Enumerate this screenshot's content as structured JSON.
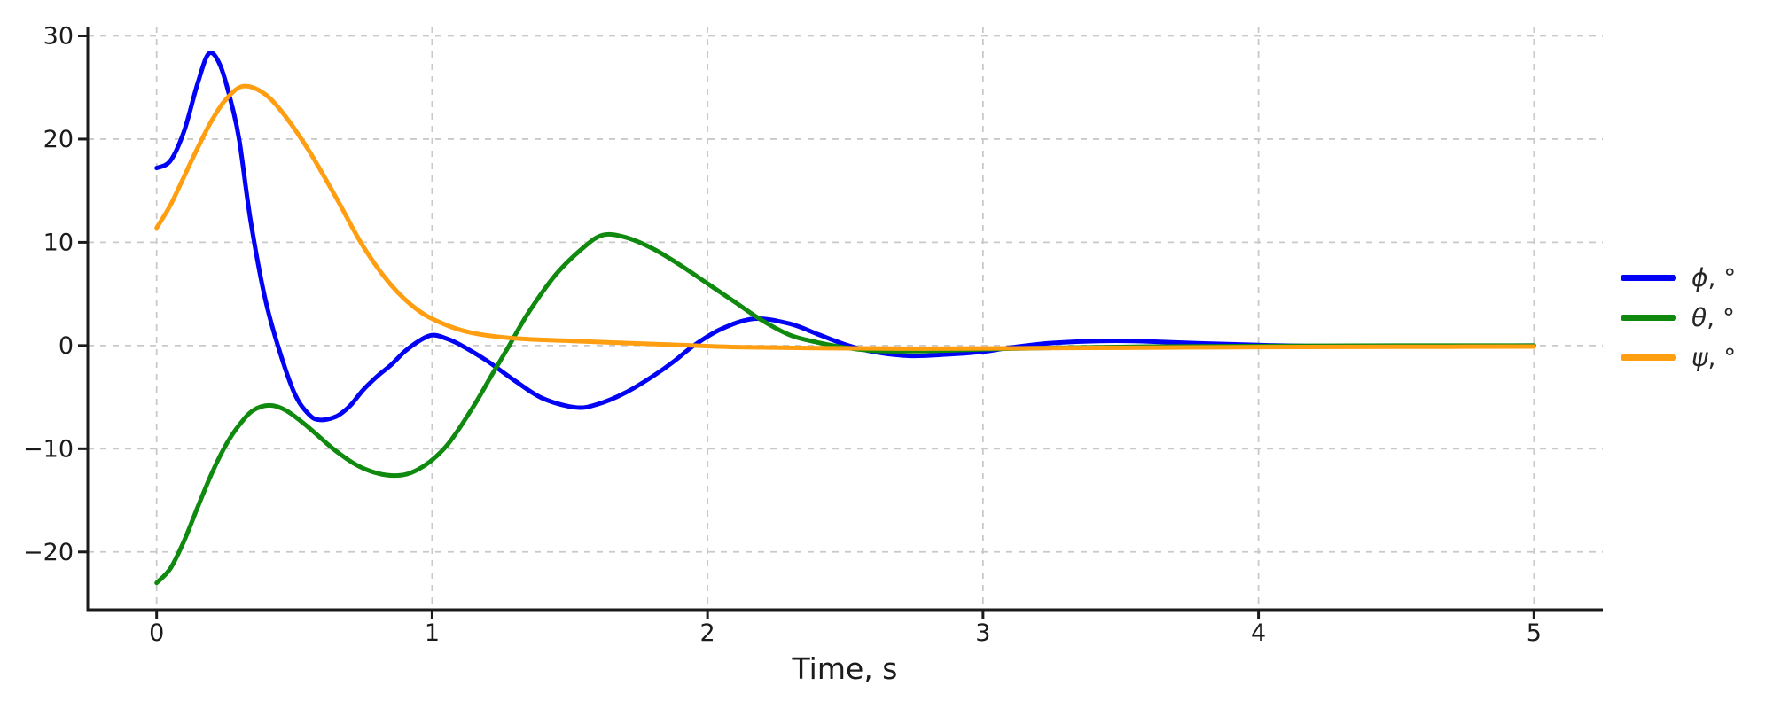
{
  "figure": {
    "background": "#ffffff",
    "axis_color": "#1b1b1b",
    "grid_color": "#c9c9c9",
    "text_color": "#1b1b1b"
  },
  "legend": {
    "position": "outside-center-right",
    "items": [
      {
        "series": "phi",
        "symbol": "ϕ",
        "suffix": ", °",
        "color": "#0202f5"
      },
      {
        "series": "theta",
        "symbol": "θ",
        "suffix": ", °",
        "color": "#0f8a0f"
      },
      {
        "series": "psi",
        "symbol": "ψ",
        "suffix": ", °",
        "color": "#ff9e10"
      }
    ]
  },
  "chart_data": {
    "type": "line",
    "title": "",
    "xlabel": "Time, s",
    "ylabel": "",
    "xlim": [
      -0.25,
      5.25
    ],
    "ylim": [
      -25.6,
      30.9
    ],
    "xticks": [
      0,
      1,
      2,
      3,
      4,
      5
    ],
    "xtick_labels": [
      "0",
      "1",
      "2",
      "3",
      "4",
      "5"
    ],
    "yticks": [
      -20,
      -10,
      0,
      10,
      20,
      30
    ],
    "ytick_labels": [
      "−20",
      "−10",
      "0",
      "10",
      "20",
      "30"
    ],
    "grid": true,
    "grid_style": "dashed",
    "line_width": 5,
    "legend_position": "center right, outside axes",
    "series": [
      {
        "name": "phi",
        "label": "ϕ, °",
        "color": "#0202f5",
        "points": [
          [
            0,
            17.2
          ],
          [
            0.05,
            17.9
          ],
          [
            0.1,
            20.8
          ],
          [
            0.15,
            25.5
          ],
          [
            0.19,
            28.3
          ],
          [
            0.23,
            27.2
          ],
          [
            0.27,
            23.6
          ],
          [
            0.3,
            19.9
          ],
          [
            0.34,
            12.3
          ],
          [
            0.39,
            5.0
          ],
          [
            0.44,
            0.0
          ],
          [
            0.5,
            -4.6
          ],
          [
            0.55,
            -6.6
          ],
          [
            0.59,
            -7.2
          ],
          [
            0.65,
            -6.9
          ],
          [
            0.7,
            -5.9
          ],
          [
            0.75,
            -4.3
          ],
          [
            0.8,
            -3.0
          ],
          [
            0.85,
            -1.9
          ],
          [
            0.9,
            -0.6
          ],
          [
            0.95,
            0.4
          ],
          [
            1.0,
            1.0
          ],
          [
            1.05,
            0.7
          ],
          [
            1.1,
            0.1
          ],
          [
            1.2,
            -1.5
          ],
          [
            1.3,
            -3.4
          ],
          [
            1.4,
            -5.1
          ],
          [
            1.52,
            -6.0
          ],
          [
            1.6,
            -5.7
          ],
          [
            1.7,
            -4.6
          ],
          [
            1.8,
            -3.0
          ],
          [
            1.88,
            -1.5
          ],
          [
            1.95,
            0.0
          ],
          [
            2.05,
            1.6
          ],
          [
            2.17,
            2.6
          ],
          [
            2.3,
            2.1
          ],
          [
            2.4,
            1.1
          ],
          [
            2.5,
            0.1
          ],
          [
            2.6,
            -0.6
          ],
          [
            2.73,
            -1.0
          ],
          [
            2.85,
            -0.9
          ],
          [
            3.0,
            -0.6
          ],
          [
            3.1,
            -0.2
          ],
          [
            3.25,
            0.25
          ],
          [
            3.45,
            0.45
          ],
          [
            3.6,
            0.4
          ],
          [
            3.8,
            0.2
          ],
          [
            4.0,
            0.05
          ],
          [
            4.2,
            -0.05
          ],
          [
            4.5,
            -0.08
          ],
          [
            4.75,
            -0.03
          ],
          [
            5.0,
            0.0
          ]
        ]
      },
      {
        "name": "theta",
        "label": "θ, °",
        "color": "#0f8a0f",
        "points": [
          [
            0,
            -23.0
          ],
          [
            0.05,
            -21.6
          ],
          [
            0.1,
            -18.9
          ],
          [
            0.15,
            -15.6
          ],
          [
            0.2,
            -12.4
          ],
          [
            0.25,
            -9.7
          ],
          [
            0.3,
            -7.7
          ],
          [
            0.35,
            -6.3
          ],
          [
            0.41,
            -5.8
          ],
          [
            0.47,
            -6.3
          ],
          [
            0.55,
            -7.9
          ],
          [
            0.65,
            -10.2
          ],
          [
            0.75,
            -11.9
          ],
          [
            0.86,
            -12.6
          ],
          [
            0.95,
            -12.0
          ],
          [
            1.05,
            -9.8
          ],
          [
            1.15,
            -5.9
          ],
          [
            1.22,
            -2.7
          ],
          [
            1.28,
            0.0
          ],
          [
            1.35,
            3.2
          ],
          [
            1.45,
            6.9
          ],
          [
            1.55,
            9.5
          ],
          [
            1.62,
            10.7
          ],
          [
            1.7,
            10.5
          ],
          [
            1.8,
            9.4
          ],
          [
            1.9,
            7.8
          ],
          [
            2.0,
            6.0
          ],
          [
            2.1,
            4.2
          ],
          [
            2.2,
            2.4
          ],
          [
            2.3,
            1.0
          ],
          [
            2.4,
            0.3
          ],
          [
            2.5,
            -0.2
          ],
          [
            2.6,
            -0.5
          ],
          [
            2.75,
            -0.55
          ],
          [
            2.9,
            -0.45
          ],
          [
            3.1,
            -0.3
          ],
          [
            3.3,
            -0.2
          ],
          [
            3.6,
            -0.1
          ],
          [
            4.0,
            -0.05
          ],
          [
            4.5,
            0.0
          ],
          [
            5.0,
            0.0
          ]
        ]
      },
      {
        "name": "psi",
        "label": "ψ, °",
        "color": "#ff9e10",
        "points": [
          [
            0,
            11.4
          ],
          [
            0.05,
            13.6
          ],
          [
            0.1,
            16.4
          ],
          [
            0.15,
            19.2
          ],
          [
            0.2,
            21.8
          ],
          [
            0.25,
            23.8
          ],
          [
            0.31,
            25.1
          ],
          [
            0.38,
            24.6
          ],
          [
            0.45,
            22.8
          ],
          [
            0.55,
            19.0
          ],
          [
            0.65,
            14.4
          ],
          [
            0.75,
            9.6
          ],
          [
            0.85,
            5.9
          ],
          [
            0.95,
            3.4
          ],
          [
            1.05,
            2.0
          ],
          [
            1.15,
            1.2
          ],
          [
            1.3,
            0.7
          ],
          [
            1.5,
            0.45
          ],
          [
            1.7,
            0.25
          ],
          [
            1.9,
            0.05
          ],
          [
            2.1,
            -0.15
          ],
          [
            2.4,
            -0.25
          ],
          [
            2.8,
            -0.3
          ],
          [
            3.2,
            -0.25
          ],
          [
            3.6,
            -0.2
          ],
          [
            4.0,
            -0.15
          ],
          [
            4.5,
            -0.12
          ],
          [
            5.0,
            -0.1
          ]
        ]
      }
    ]
  }
}
